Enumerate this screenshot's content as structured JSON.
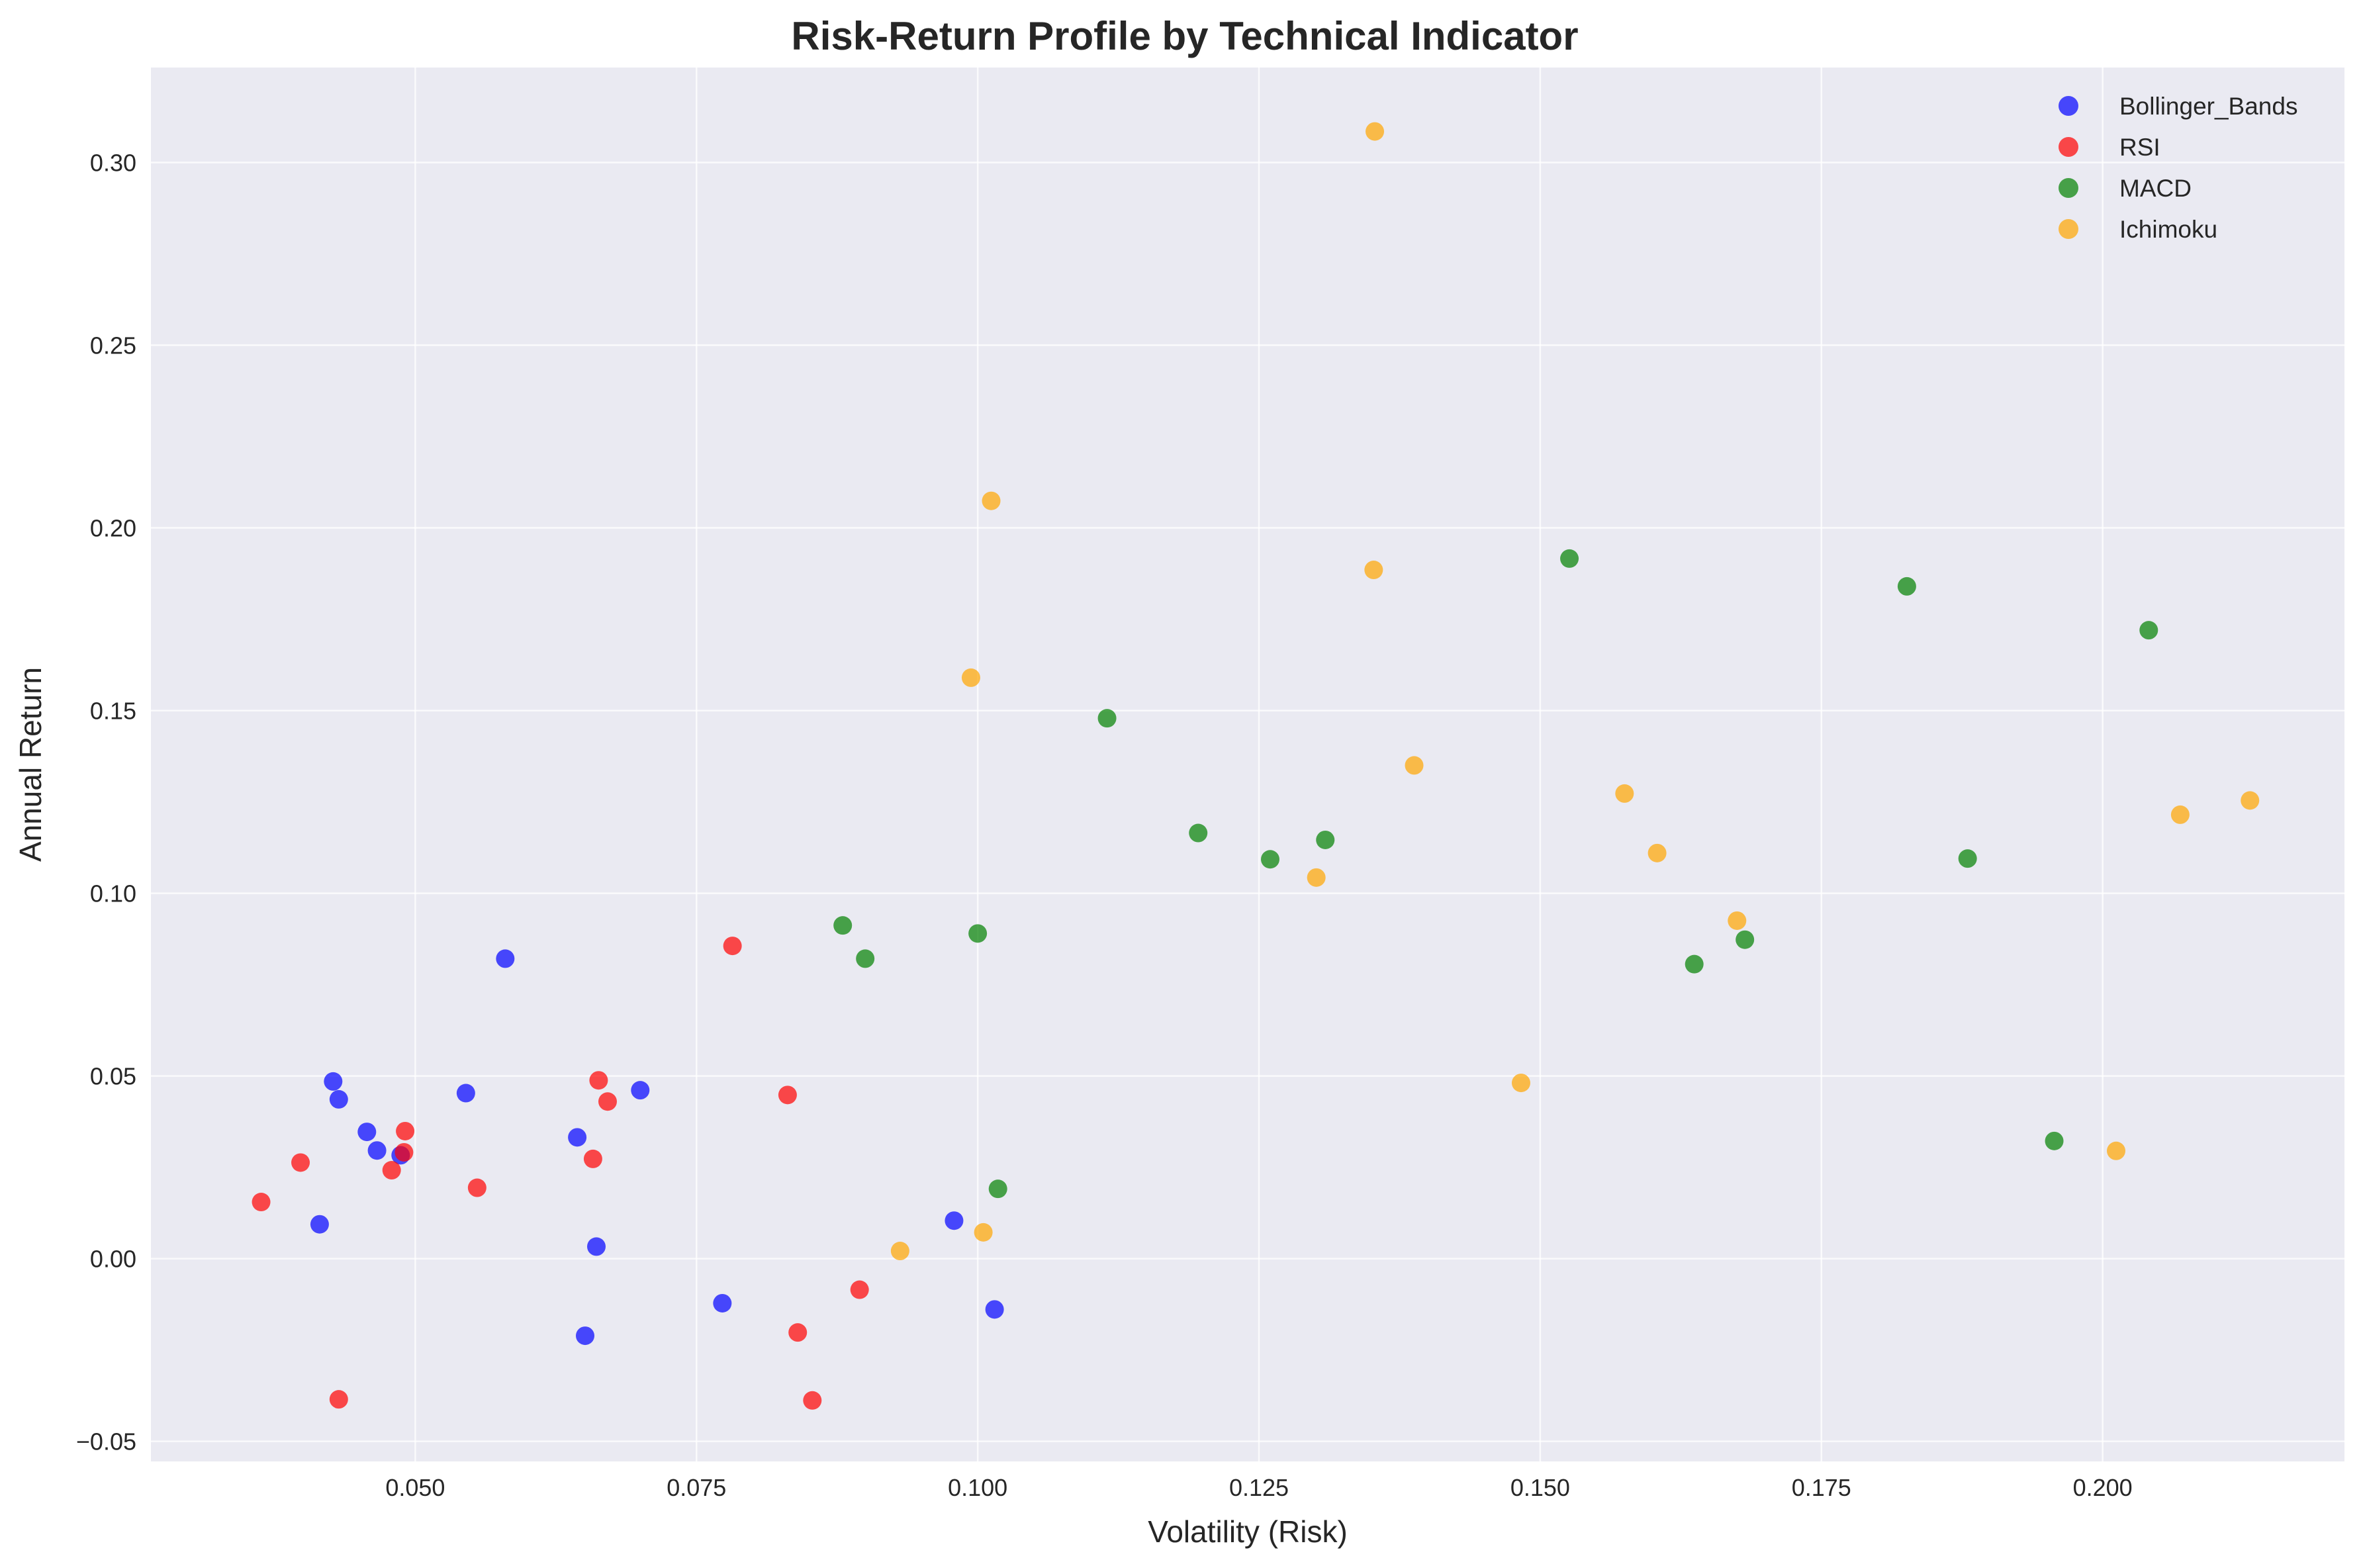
{
  "chart_data": {
    "type": "scatter",
    "title": "Risk-Return Profile by Technical Indicator",
    "xlabel": "Volatility (Risk)",
    "ylabel": "Annual Return",
    "xlim": [
      0.0265,
      0.2215
    ],
    "ylim": [
      -0.0555,
      0.326
    ],
    "xticks": [
      0.05,
      0.075,
      0.1,
      0.125,
      0.15,
      0.175,
      0.2
    ],
    "xtick_labels": [
      "0.050",
      "0.075",
      "0.100",
      "0.125",
      "0.150",
      "0.175",
      "0.200"
    ],
    "yticks": [
      -0.05,
      0.0,
      0.05,
      0.1,
      0.15,
      0.2,
      0.25,
      0.3
    ],
    "ytick_labels": [
      "−0.05",
      "0.00",
      "0.05",
      "0.10",
      "0.15",
      "0.20",
      "0.25",
      "0.30"
    ],
    "grid": true,
    "legend_position": "top-right",
    "background": "#eaeaf2",
    "series": [
      {
        "name": "Bollinger_Bands",
        "color": "#0000ff",
        "points": [
          [
            0.0415,
            0.0094
          ],
          [
            0.0427,
            0.0485
          ],
          [
            0.0432,
            0.0436
          ],
          [
            0.0457,
            0.0347
          ],
          [
            0.0466,
            0.0296
          ],
          [
            0.0487,
            0.0283
          ],
          [
            0.0545,
            0.0453
          ],
          [
            0.058,
            0.0821
          ],
          [
            0.0644,
            0.0332
          ],
          [
            0.0651,
            -0.0211
          ],
          [
            0.0661,
            0.0033
          ],
          [
            0.07,
            0.0461
          ],
          [
            0.0773,
            -0.0122
          ],
          [
            0.0979,
            0.0104
          ],
          [
            0.1015,
            -0.0139
          ]
        ]
      },
      {
        "name": "RSI",
        "color": "#ff0000",
        "points": [
          [
            0.0363,
            0.0155
          ],
          [
            0.0398,
            0.0263
          ],
          [
            0.0432,
            -0.0385
          ],
          [
            0.0479,
            0.0242
          ],
          [
            0.049,
            0.0291
          ],
          [
            0.0491,
            0.0349
          ],
          [
            0.0555,
            0.0194
          ],
          [
            0.0658,
            0.0273
          ],
          [
            0.0663,
            0.0488
          ],
          [
            0.0671,
            0.043
          ],
          [
            0.0782,
            0.0856
          ],
          [
            0.0831,
            0.0448
          ],
          [
            0.084,
            -0.0202
          ],
          [
            0.0853,
            -0.0388
          ],
          [
            0.0895,
            -0.0085
          ]
        ]
      },
      {
        "name": "MACD",
        "color": "#008000",
        "points": [
          [
            0.088,
            0.0912
          ],
          [
            0.09,
            0.0821
          ],
          [
            0.1,
            0.089
          ],
          [
            0.1018,
            0.0191
          ],
          [
            0.1115,
            0.1479
          ],
          [
            0.1196,
            0.1165
          ],
          [
            0.126,
            0.1093
          ],
          [
            0.1309,
            0.1146
          ],
          [
            0.1526,
            0.1916
          ],
          [
            0.1637,
            0.0806
          ],
          [
            0.1682,
            0.0873
          ],
          [
            0.1826,
            0.184
          ],
          [
            0.188,
            0.1095
          ],
          [
            0.1957,
            0.0322
          ],
          [
            0.2041,
            0.172
          ]
        ]
      },
      {
        "name": "Ichimoku",
        "color": "#ffa500",
        "points": [
          [
            0.0931,
            0.0021
          ],
          [
            0.0994,
            0.159
          ],
          [
            0.1005,
            0.0072
          ],
          [
            0.1012,
            0.2074
          ],
          [
            0.1301,
            0.1043
          ],
          [
            0.1352,
            0.1885
          ],
          [
            0.1353,
            0.3085
          ],
          [
            0.1388,
            0.135
          ],
          [
            0.1483,
            0.0481
          ],
          [
            0.1575,
            0.1273
          ],
          [
            0.1604,
            0.111
          ],
          [
            0.1675,
            0.0925
          ],
          [
            0.2012,
            0.0295
          ],
          [
            0.2069,
            0.1215
          ],
          [
            0.2131,
            0.1254
          ]
        ]
      }
    ]
  }
}
